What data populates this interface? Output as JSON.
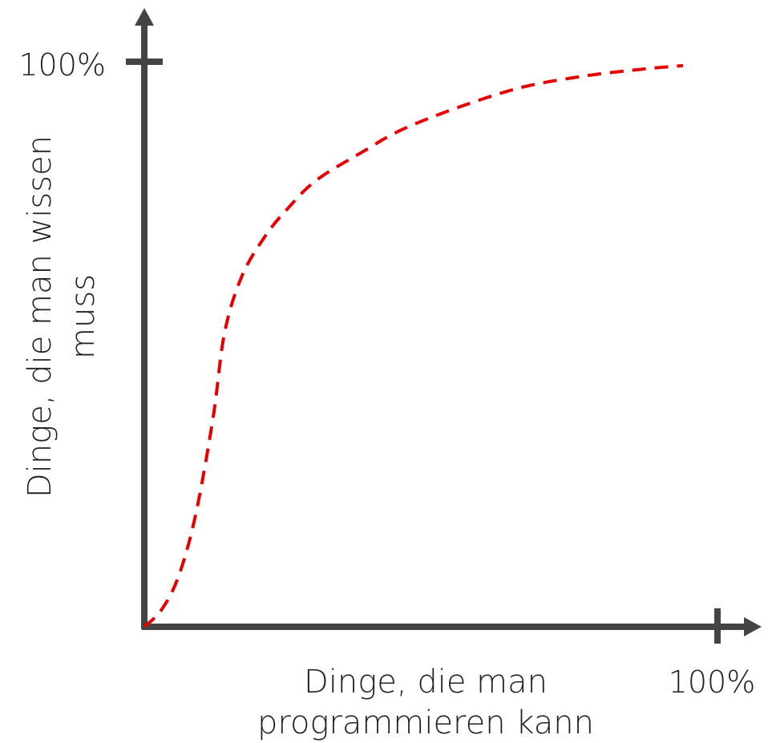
{
  "colors": {
    "axis": "#444444",
    "curve": "#e60000",
    "text": "#222222"
  },
  "chart_data": {
    "type": "line",
    "xlabel": [
      "Dinge, die man",
      "programmieren kann"
    ],
    "ylabel": [
      "Dinge, die man wissen",
      "muss"
    ],
    "xlim": [
      0,
      100
    ],
    "ylim": [
      0,
      100
    ],
    "x_tick_label": "100%",
    "y_tick_label": "100%",
    "grid": false,
    "series": [
      {
        "style": "dashed",
        "color": "#e60000",
        "points": [
          {
            "x": 0,
            "y": 0
          },
          {
            "x": 3,
            "y": 3
          },
          {
            "x": 6,
            "y": 9
          },
          {
            "x": 9,
            "y": 20
          },
          {
            "x": 12,
            "y": 37
          },
          {
            "x": 14,
            "y": 52
          },
          {
            "x": 17,
            "y": 62
          },
          {
            "x": 21,
            "y": 69
          },
          {
            "x": 25,
            "y": 74
          },
          {
            "x": 30,
            "y": 79
          },
          {
            "x": 38,
            "y": 84
          },
          {
            "x": 45,
            "y": 88
          },
          {
            "x": 55,
            "y": 92
          },
          {
            "x": 66,
            "y": 95.5
          },
          {
            "x": 77,
            "y": 97.5
          },
          {
            "x": 87,
            "y": 98.7
          },
          {
            "x": 94,
            "y": 99.3
          }
        ]
      }
    ]
  }
}
